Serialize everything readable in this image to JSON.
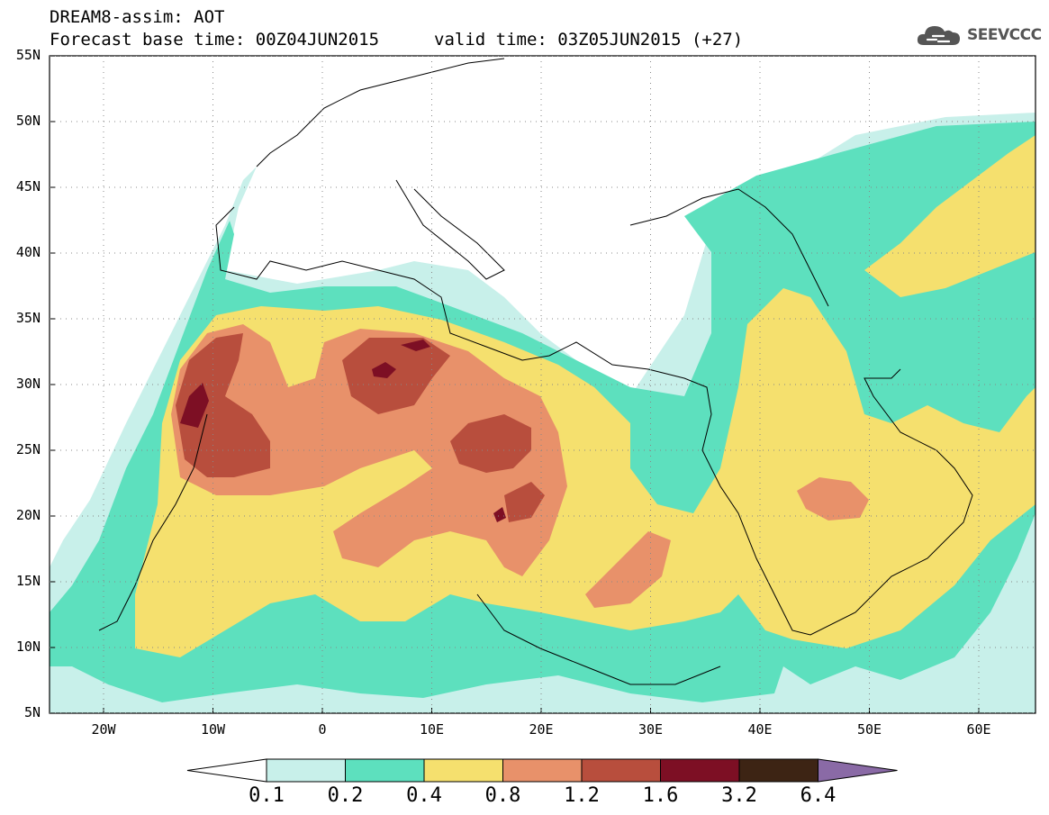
{
  "header": {
    "title_line1": "DREAM8-assim: AOT",
    "title_line2": "Forecast base time: 00Z04JUN2015",
    "valid_time": "valid time: 03Z05JUN2015 (+27)"
  },
  "logo": {
    "text": "SEEVCCC",
    "icon": "cloud-icon"
  },
  "map": {
    "lat_labels": [
      "55N",
      "50N",
      "45N",
      "40N",
      "35N",
      "30N",
      "25N",
      "20N",
      "15N",
      "10N",
      "5N"
    ],
    "lon_labels": [
      "20W",
      "10W",
      "0",
      "10E",
      "20E",
      "30E",
      "40E",
      "50E",
      "60E"
    ]
  },
  "colorbar": {
    "thresholds": [
      "0.1",
      "0.2",
      "0.4",
      "0.8",
      "1.2",
      "1.6",
      "3.2",
      "6.4"
    ],
    "colors": [
      "#ffffff",
      "#c8f0ea",
      "#5de0be",
      "#f5e06e",
      "#e8916a",
      "#b84e3d",
      "#7d0f24",
      "#3d2414",
      "#8a6aa6"
    ]
  }
}
